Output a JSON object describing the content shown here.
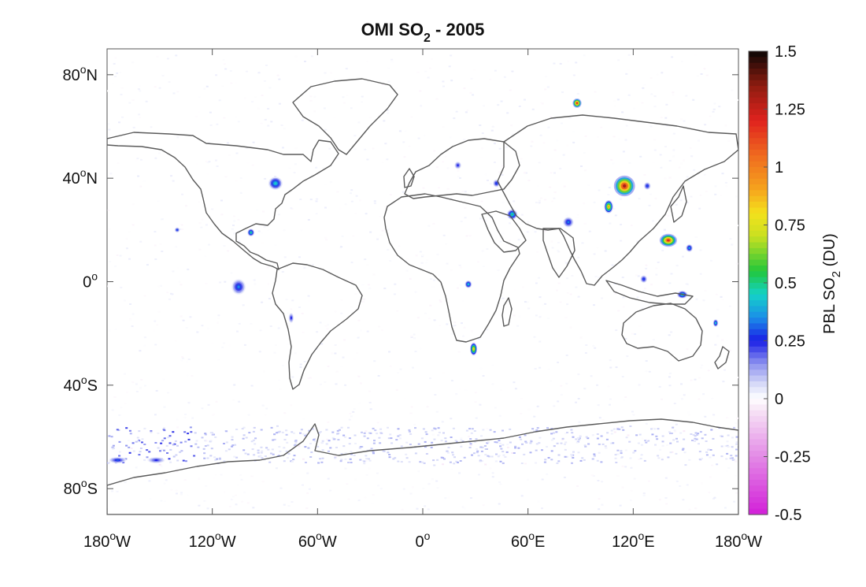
{
  "chart_data": {
    "type": "heatmap",
    "map_projection": "equirectangular",
    "title_parts": {
      "main": "OMI SO",
      "sub": "2",
      "rest": " - 2005"
    },
    "x_ticks": [
      {
        "value": -180,
        "label": "180",
        "sup": "o",
        "hemi": "W"
      },
      {
        "value": -120,
        "label": "120",
        "sup": "o",
        "hemi": "W"
      },
      {
        "value": -60,
        "label": "60",
        "sup": "o",
        "hemi": "W"
      },
      {
        "value": 0,
        "label": "0",
        "sup": "o",
        "hemi": ""
      },
      {
        "value": 60,
        "label": "60",
        "sup": "o",
        "hemi": "E"
      },
      {
        "value": 120,
        "label": "120",
        "sup": "o",
        "hemi": "E"
      },
      {
        "value": 180,
        "label": "180",
        "sup": "o",
        "hemi": "W"
      }
    ],
    "y_ticks": [
      {
        "value": 80,
        "label": "80",
        "sup": "o",
        "hemi": "N"
      },
      {
        "value": 40,
        "label": "40",
        "sup": "o",
        "hemi": "N"
      },
      {
        "value": 0,
        "label": "0",
        "sup": "o",
        "hemi": ""
      },
      {
        "value": -40,
        "label": "40",
        "sup": "o",
        "hemi": "S"
      },
      {
        "value": -80,
        "label": "80",
        "sup": "o",
        "hemi": "S"
      }
    ],
    "xlim": [
      -180,
      180
    ],
    "ylim": [
      -90,
      90
    ],
    "colorbar": {
      "label_parts": {
        "main": "PBL SO",
        "sub": "2",
        "rest": " (DU)"
      },
      "range": [
        -0.5,
        1.5
      ],
      "ticks": [
        {
          "value": 1.5,
          "label": "1.5"
        },
        {
          "value": 1.25,
          "label": "1.25"
        },
        {
          "value": 1,
          "label": "1"
        },
        {
          "value": 0.75,
          "label": "0.75"
        },
        {
          "value": 0.5,
          "label": "0.5"
        },
        {
          "value": 0.25,
          "label": "0.25"
        },
        {
          "value": 0,
          "label": "0"
        },
        {
          "value": -0.25,
          "label": "-0.25"
        },
        {
          "value": -0.5,
          "label": "-0.5"
        }
      ],
      "stops": [
        {
          "v": -0.5,
          "c": "#d21fd8"
        },
        {
          "v": -0.25,
          "c": "#e38ae6"
        },
        {
          "v": -0.05,
          "c": "#f7e4f6"
        },
        {
          "v": 0,
          "c": "#ffffff"
        },
        {
          "v": 0.06,
          "c": "#d9dcf8"
        },
        {
          "v": 0.15,
          "c": "#8d93ef"
        },
        {
          "v": 0.25,
          "c": "#1a1ee6"
        },
        {
          "v": 0.35,
          "c": "#1b8fe8"
        },
        {
          "v": 0.45,
          "c": "#14d2c8"
        },
        {
          "v": 0.55,
          "c": "#22c73a"
        },
        {
          "v": 0.7,
          "c": "#c8e021"
        },
        {
          "v": 0.8,
          "c": "#f4e11c"
        },
        {
          "v": 0.9,
          "c": "#f6a51d"
        },
        {
          "v": 1.05,
          "c": "#ef6a1f"
        },
        {
          "v": 1.2,
          "c": "#e0221e"
        },
        {
          "v": 1.35,
          "c": "#8e1c10"
        },
        {
          "v": 1.5,
          "c": "#0b0605"
        }
      ]
    },
    "hotspots": [
      {
        "lon": 88,
        "lat": 69,
        "peak": 1.2,
        "rx": 2.5,
        "ry": 1.8
      },
      {
        "lon": 115,
        "lat": 37,
        "peak": 1.3,
        "rx": 6,
        "ry": 4
      },
      {
        "lon": 106,
        "lat": 29,
        "peak": 0.9,
        "rx": 2.5,
        "ry": 2.5
      },
      {
        "lon": 140,
        "lat": 16,
        "peak": 1.2,
        "rx": 5,
        "ry": 2.5
      },
      {
        "lon": 152,
        "lat": 13,
        "peak": 0.4,
        "rx": 2,
        "ry": 1.5
      },
      {
        "lon": -84,
        "lat": 38,
        "peak": 0.45,
        "rx": 4,
        "ry": 2.5
      },
      {
        "lon": -98,
        "lat": 19,
        "peak": 0.5,
        "rx": 2,
        "ry": 1.5
      },
      {
        "lon": -105,
        "lat": -2,
        "peak": 0.35,
        "rx": 4,
        "ry": 3
      },
      {
        "lon": 29,
        "lat": -26,
        "peak": 0.85,
        "rx": 2,
        "ry": 2.5
      },
      {
        "lon": 26,
        "lat": -1,
        "peak": 0.45,
        "rx": 2,
        "ry": 1.5
      },
      {
        "lon": 51,
        "lat": 26,
        "peak": 0.5,
        "rx": 3,
        "ry": 2
      },
      {
        "lon": 83,
        "lat": 23,
        "peak": 0.35,
        "rx": 3,
        "ry": 2
      },
      {
        "lon": 148,
        "lat": -5,
        "peak": 0.5,
        "rx": 3,
        "ry": 1.5
      },
      {
        "lon": 167,
        "lat": -16,
        "peak": 0.45,
        "rx": 1.5,
        "ry": 1.5
      },
      {
        "lon": 126,
        "lat": 1,
        "peak": 0.3,
        "rx": 2,
        "ry": 1.5
      },
      {
        "lon": -140,
        "lat": 20,
        "peak": 0.3,
        "rx": 1.5,
        "ry": 1
      },
      {
        "lon": -75,
        "lat": -14,
        "peak": 0.25,
        "rx": 1.5,
        "ry": 2
      },
      {
        "lon": 128,
        "lat": 37,
        "peak": 0.3,
        "rx": 2,
        "ry": 1.5
      },
      {
        "lon": 42,
        "lat": 38,
        "peak": 0.3,
        "rx": 2,
        "ry": 1.5
      },
      {
        "lon": 20,
        "lat": 45,
        "peak": 0.25,
        "rx": 2,
        "ry": 1.5
      },
      {
        "lon": -174,
        "lat": -69,
        "peak": 0.3,
        "rx": 5,
        "ry": 1.2
      },
      {
        "lon": -152,
        "lat": -69,
        "peak": 0.25,
        "rx": 5,
        "ry": 1.2
      }
    ]
  }
}
